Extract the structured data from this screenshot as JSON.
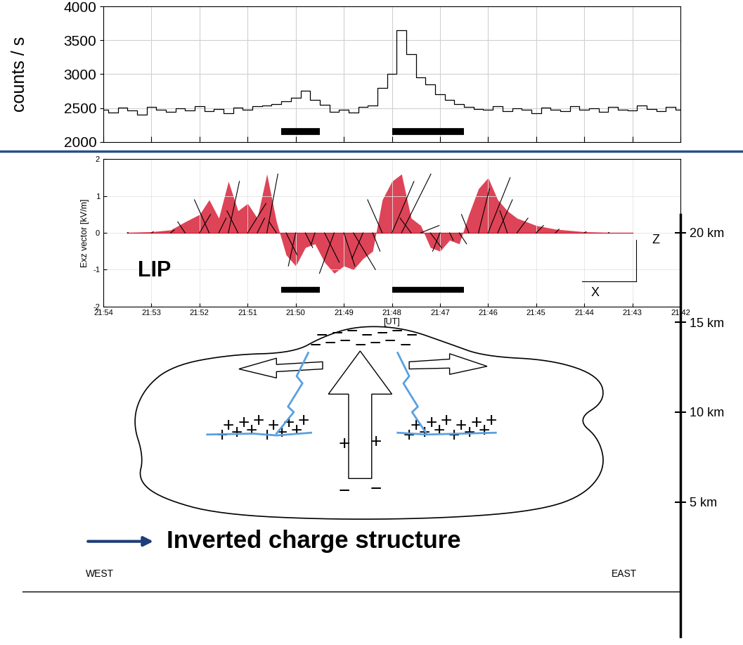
{
  "chart_data": [
    {
      "type": "line",
      "ylabel": "counts / s",
      "x": [
        54.0,
        53.8,
        53.6,
        53.4,
        53.2,
        53.0,
        52.8,
        52.6,
        52.4,
        52.2,
        52.0,
        51.8,
        51.6,
        51.4,
        51.2,
        51.0,
        50.8,
        50.6,
        50.4,
        50.2,
        50.0,
        49.8,
        49.6,
        49.4,
        49.2,
        49.0,
        48.8,
        48.6,
        48.4,
        48.2,
        48.0,
        47.8,
        47.6,
        47.4,
        47.2,
        47.0,
        46.8,
        46.6,
        46.4,
        46.2,
        46.0,
        45.8,
        45.6,
        45.4,
        45.2,
        45.0,
        44.8,
        44.6,
        44.4,
        44.2,
        44.0,
        43.8,
        43.6,
        43.4,
        43.2,
        43.0,
        42.8,
        42.6,
        42.4,
        42.2,
        42.0
      ],
      "values": [
        2480,
        2430,
        2510,
        2460,
        2400,
        2520,
        2470,
        2440,
        2500,
        2460,
        2530,
        2450,
        2490,
        2420,
        2510,
        2470,
        2530,
        2540,
        2560,
        2600,
        2650,
        2760,
        2620,
        2550,
        2440,
        2480,
        2430,
        2520,
        2540,
        2800,
        3000,
        3650,
        3300,
        2950,
        2850,
        2700,
        2620,
        2560,
        2520,
        2490,
        2480,
        2530,
        2450,
        2500,
        2470,
        2420,
        2510,
        2480,
        2450,
        2530,
        2470,
        2500,
        2440,
        2520,
        2480,
        2460,
        2540,
        2490,
        2450,
        2520,
        2480
      ],
      "color": "#000000",
      "xlim": [
        54,
        42
      ],
      "xticks": [
        54,
        53,
        52,
        51,
        50,
        49,
        48,
        47,
        46,
        45,
        44,
        43,
        42
      ],
      "ylim": [
        2000,
        4000
      ],
      "yticks": [
        2000,
        2500,
        3000,
        3500,
        4000
      ],
      "grid": true,
      "tick_labels": "y",
      "intervals": [
        [
          50.3,
          49.5
        ],
        [
          48.0,
          46.5
        ]
      ],
      "interval_level": 2150
    },
    {
      "type": "vector",
      "ylabel": "Exz vector [kV/m]",
      "xlabel": "[UT]",
      "x": [
        53.5,
        53.0,
        52.6,
        52.3,
        52.0,
        51.8,
        51.6,
        51.4,
        51.2,
        51.0,
        50.8,
        50.6,
        50.4,
        50.2,
        50.0,
        49.8,
        49.6,
        49.4,
        49.2,
        49.0,
        48.8,
        48.6,
        48.4,
        48.2,
        48.0,
        47.8,
        47.6,
        47.4,
        47.2,
        47.0,
        46.8,
        46.6,
        46.4,
        46.2,
        46.0,
        45.8,
        45.6,
        45.4,
        45.0,
        44.6,
        44.0,
        43.5,
        43.0
      ],
      "ex": [
        0.02,
        0.05,
        0.1,
        -0.2,
        0.3,
        -0.4,
        0.2,
        0.3,
        -0.3,
        0.5,
        0.2,
        0.3,
        -0.2,
        0.3,
        -0.2,
        0.2,
        -0.1,
        0.4,
        -0.4,
        0.3,
        0.6,
        -0.3,
        0.2,
        -0.4,
        0.6,
        0.8,
        -0.3,
        0.5,
        0.3,
        -0.2,
        0.1,
        0.2,
        -0.2,
        0.3,
        0.6,
        0.4,
        -0.2,
        0.3,
        0.2,
        0.1,
        0.05,
        0.02,
        0.01
      ],
      "ez": [
        0.01,
        0.03,
        0.08,
        0.3,
        0.5,
        0.9,
        0.4,
        1.4,
        0.6,
        0.8,
        0.4,
        1.6,
        0.3,
        -0.6,
        -0.9,
        -0.4,
        -0.3,
        -0.8,
        -1.1,
        -0.9,
        -1.0,
        -0.7,
        -0.5,
        0.9,
        1.4,
        1.6,
        0.4,
        0.2,
        -0.4,
        -0.5,
        -0.2,
        -0.3,
        0.5,
        1.2,
        1.5,
        0.9,
        0.6,
        0.4,
        0.2,
        0.1,
        0.03,
        0.01,
        0.0
      ],
      "color": "#000000",
      "xlim": [
        54,
        42
      ],
      "xticks": [
        {
          "value": 54,
          "label": "21:54"
        },
        {
          "value": 53,
          "label": "21:53"
        },
        {
          "value": 52,
          "label": "21:52"
        },
        {
          "value": 51,
          "label": "21:51"
        },
        {
          "value": 50,
          "label": "21:50"
        },
        {
          "value": 49,
          "label": "21:49"
        },
        {
          "value": 48,
          "label": "21:48"
        },
        {
          "value": 47,
          "label": "21:47"
        },
        {
          "value": 46,
          "label": "21:46"
        },
        {
          "value": 45,
          "label": "21:45"
        },
        {
          "value": 44,
          "label": "21:44"
        },
        {
          "value": 43,
          "label": "21:43"
        },
        {
          "value": 42,
          "label": "21:42"
        }
      ],
      "ylim": [
        -2,
        2
      ],
      "yticks": [
        -2,
        -1,
        0,
        1,
        2
      ],
      "grid": true,
      "annotations": [
        "LIP",
        "Z",
        "X"
      ],
      "intervals": [
        [
          50.3,
          49.5
        ],
        [
          48.0,
          46.5
        ]
      ],
      "interval_level": -1.55
    }
  ],
  "diagram": {
    "altitude_axis": {
      "ylim": [
        -2.5,
        21
      ],
      "yticks": [
        {
          "value": 5,
          "label": "5 km"
        },
        {
          "value": 10,
          "label": "10 km"
        },
        {
          "value": 15,
          "label": "15 km"
        },
        {
          "value": 20,
          "label": "20 km"
        }
      ]
    },
    "charges": [
      {
        "symbol": "−",
        "altitude_km": 13.8,
        "count": 14,
        "side": "center"
      },
      {
        "symbol": "+",
        "altitude_km": 8.8,
        "count": 12,
        "side": "west"
      },
      {
        "symbol": "+",
        "altitude_km": 8.8,
        "count": 12,
        "side": "east"
      },
      {
        "symbol": "+",
        "altitude_km": 8.3,
        "count": 2,
        "side": "center"
      },
      {
        "symbol": "−",
        "altitude_km": 5.7,
        "count": 2,
        "side": "center"
      }
    ],
    "caption": "Inverted charge structure",
    "west": "WEST",
    "east": "EAST"
  }
}
